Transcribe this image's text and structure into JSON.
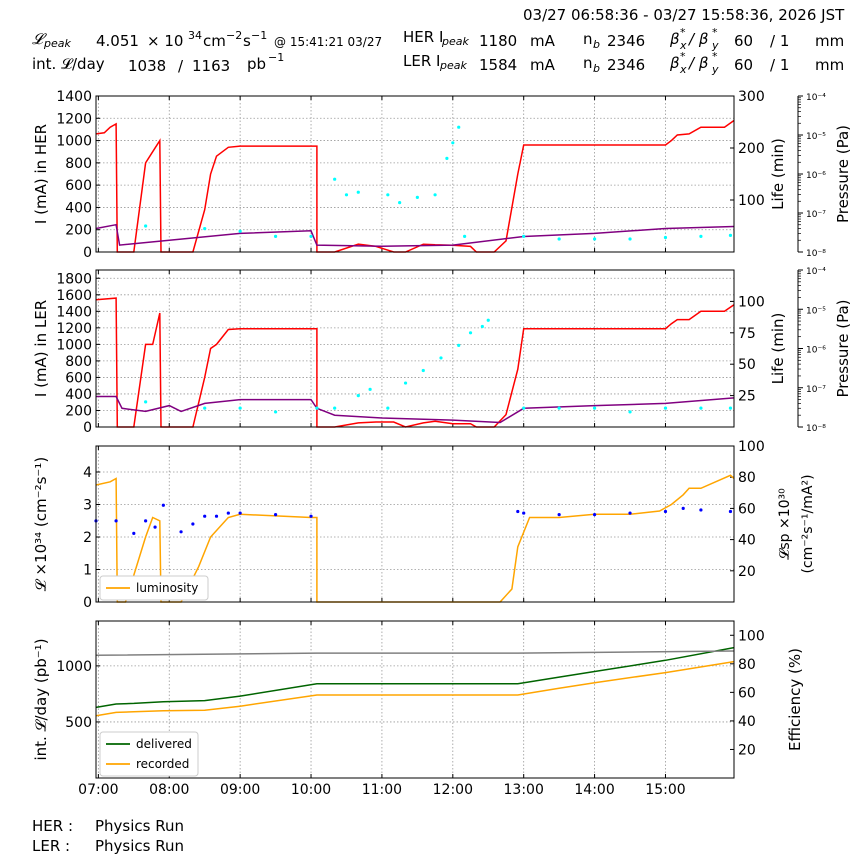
{
  "header": {
    "time_range": "03/27 06:58:36 - 03/27 15:58:36, 2026 JST",
    "lpeak_label": "𝓛",
    "lpeak_sub": "peak",
    "lpeak_value": "4.051",
    "lpeak_times": "× 10",
    "lpeak_exp": "34",
    "lpeak_unit_a": "cm",
    "lpeak_unit_b": "−2",
    "lpeak_unit_c": "s",
    "lpeak_unit_d": "−1",
    "lpeak_at": "@ 15:41:21 03/27",
    "intl_label": "int. 𝓛/day",
    "intl_value1": "1038",
    "intl_slash": "/",
    "intl_value2": "1163",
    "intl_unit": "pb",
    "intl_unit_exp": "−1",
    "her_ipeak_label": "HER I",
    "her_ipeak_sub": "peak",
    "her_ipeak_value": "1180",
    "her_unit": "mA",
    "her_nb_label": "n",
    "her_nb_sub": "b",
    "her_nb_value": "2346",
    "her_beta": "β",
    "her_beta_x": "x",
    "her_beta_sep": "/ β",
    "her_beta_y": "y",
    "her_star": "*",
    "her_beta_val1": "60",
    "her_beta_val2": "/ 1",
    "her_beta_unit": "mm",
    "ler_ipeak_label": "LER I",
    "ler_ipeak_sub": "peak",
    "ler_ipeak_value": "1584",
    "ler_unit": "mA",
    "ler_nb_label": "n",
    "ler_nb_sub": "b",
    "ler_nb_value": "2346",
    "ler_beta": "β",
    "ler_beta_x": "x",
    "ler_beta_sep": "/ β",
    "ler_beta_y": "y",
    "ler_star": "*",
    "ler_beta_val1": "60",
    "ler_beta_val2": "/ 1",
    "ler_beta_unit": "mm"
  },
  "footer": {
    "her_label": "HER :",
    "her_status": "Physics Run",
    "ler_label": "LER :",
    "ler_status": "Physics Run"
  },
  "colors": {
    "current": "#ff0000",
    "life": "#00ffff",
    "pressure": "#800080",
    "lum": "#ffa500",
    "lsp": "#0000ff",
    "delivered": "#006400",
    "recorded": "#ffa500",
    "efficiency": "#808080"
  },
  "chart_data": [
    {
      "type": "line",
      "ylabel": "I (mA) in HER",
      "ylabel_right": "Life (min)",
      "ylabel_right2": "Pressure (Pa)",
      "xlim": [
        "06:58",
        "15:58"
      ],
      "ylim": [
        0,
        1400
      ],
      "yticks": [
        0,
        200,
        400,
        600,
        800,
        1000,
        1200,
        1400
      ],
      "y2lim": [
        0,
        300
      ],
      "y2ticks": [
        100,
        200,
        300
      ],
      "y3_log_range": [
        -8,
        -4
      ],
      "y3ticks": [
        "10⁻⁸",
        "10⁻⁷",
        "10⁻⁶",
        "10⁻⁵",
        "10⁻⁴"
      ],
      "series": [
        {
          "role": "current",
          "axis": "left",
          "x": [
            "06:58",
            "07:05",
            "07:10",
            "07:15",
            "07:16",
            "07:23",
            "07:30",
            "07:40",
            "07:46",
            "07:52",
            "07:53",
            "08:00",
            "08:10",
            "08:20",
            "08:30",
            "08:35",
            "08:40",
            "08:50",
            "09:00",
            "10:00",
            "10:05",
            "10:05",
            "10:20",
            "10:40",
            "10:55",
            "11:10",
            "11:20",
            "11:35",
            "11:45",
            "12:00",
            "12:15",
            "12:20",
            "12:35",
            "12:45",
            "12:55",
            "13:00",
            "14:00",
            "15:00",
            "15:05",
            "15:10",
            "15:20",
            "15:30",
            "15:50",
            "15:58"
          ],
          "y": [
            1060,
            1070,
            1120,
            1150,
            0,
            0,
            0,
            800,
            900,
            1000,
            0,
            0,
            0,
            0,
            380,
            700,
            860,
            940,
            950,
            950,
            950,
            0,
            0,
            70,
            50,
            0,
            0,
            70,
            65,
            60,
            50,
            0,
            0,
            100,
            700,
            960,
            960,
            960,
            1000,
            1050,
            1060,
            1120,
            1120,
            1180
          ]
        },
        {
          "role": "pressure",
          "axis": "right2",
          "x": [
            "06:58",
            "07:15",
            "07:18",
            "08:00",
            "09:00",
            "10:00",
            "10:05",
            "11:00",
            "12:00",
            "13:00",
            "14:00",
            "15:00",
            "15:58"
          ],
          "y": [
            4e-08,
            5e-08,
            1.5e-08,
            2e-08,
            3e-08,
            3.5e-08,
            1.5e-08,
            1.4e-08,
            1.5e-08,
            2.5e-08,
            3e-08,
            4e-08,
            4.5e-08
          ]
        },
        {
          "role": "life",
          "axis": "right",
          "style": "dots",
          "x": [
            "07:40",
            "08:30",
            "09:00",
            "09:30",
            "10:00",
            "10:20",
            "10:30",
            "10:40",
            "11:05",
            "11:15",
            "11:30",
            "11:45",
            "11:55",
            "12:00",
            "12:05",
            "12:10",
            "13:00",
            "13:30",
            "14:00",
            "14:30",
            "15:00",
            "15:30",
            "15:55"
          ],
          "y": [
            50,
            45,
            40,
            30,
            30,
            140,
            110,
            115,
            110,
            95,
            105,
            110,
            180,
            210,
            240,
            30,
            30,
            25,
            25,
            25,
            28,
            30,
            32
          ]
        }
      ]
    },
    {
      "type": "line",
      "ylabel": "I (mA) in LER",
      "ylabel_right": "Life (min)",
      "ylabel_right2": "Pressure (Pa)",
      "xlim": [
        "06:58",
        "15:58"
      ],
      "ylim": [
        0,
        1900
      ],
      "yticks": [
        0,
        200,
        400,
        600,
        800,
        1000,
        1200,
        1400,
        1600,
        1800
      ],
      "y2lim": [
        0,
        125
      ],
      "y2ticks": [
        25,
        50,
        75,
        100
      ],
      "y3_log_range": [
        -8,
        -4
      ],
      "y3ticks": [
        "10⁻⁸",
        "10⁻⁷",
        "10⁻⁶",
        "10⁻⁵",
        "10⁻⁴"
      ],
      "series": [
        {
          "role": "current",
          "axis": "left",
          "x": [
            "06:58",
            "07:15",
            "07:16",
            "07:23",
            "07:30",
            "07:40",
            "07:46",
            "07:52",
            "07:53",
            "08:00",
            "08:10",
            "08:20",
            "08:30",
            "08:35",
            "08:40",
            "08:50",
            "09:00",
            "10:00",
            "10:05",
            "10:05",
            "10:20",
            "10:40",
            "10:55",
            "11:10",
            "11:20",
            "11:35",
            "11:45",
            "12:00",
            "12:15",
            "12:20",
            "12:35",
            "12:45",
            "12:55",
            "13:00",
            "14:00",
            "15:00",
            "15:05",
            "15:10",
            "15:20",
            "15:30",
            "15:50",
            "15:58"
          ],
          "y": [
            1540,
            1560,
            0,
            0,
            0,
            1000,
            1000,
            1380,
            0,
            0,
            0,
            0,
            600,
            950,
            1000,
            1180,
            1190,
            1190,
            1190,
            0,
            0,
            50,
            60,
            60,
            0,
            50,
            70,
            40,
            40,
            0,
            0,
            150,
            700,
            1190,
            1190,
            1190,
            1250,
            1300,
            1300,
            1400,
            1400,
            1480
          ]
        },
        {
          "role": "pressure",
          "axis": "right2",
          "x": [
            "06:58",
            "07:15",
            "07:20",
            "07:40",
            "08:00",
            "08:10",
            "08:30",
            "09:00",
            "10:00",
            "10:05",
            "10:20",
            "11:00",
            "12:00",
            "12:40",
            "13:00",
            "14:00",
            "15:00",
            "15:58"
          ],
          "y": [
            6e-08,
            6e-08,
            3e-08,
            2.5e-08,
            3.5e-08,
            2.5e-08,
            4e-08,
            5e-08,
            5e-08,
            3e-08,
            2e-08,
            1.7e-08,
            1.5e-08,
            1.3e-08,
            3e-08,
            3.5e-08,
            4e-08,
            5.5e-08
          ]
        },
        {
          "role": "life",
          "axis": "right",
          "style": "dots",
          "x": [
            "07:40",
            "08:30",
            "09:00",
            "09:30",
            "10:05",
            "10:20",
            "10:40",
            "10:50",
            "11:05",
            "11:20",
            "11:35",
            "11:50",
            "12:05",
            "12:15",
            "12:25",
            "12:30",
            "13:00",
            "13:30",
            "14:00",
            "14:30",
            "15:00",
            "15:30",
            "15:55"
          ],
          "y": [
            20,
            15,
            15,
            12,
            15,
            15,
            25,
            30,
            15,
            35,
            45,
            55,
            65,
            75,
            80,
            85,
            15,
            15,
            15,
            12,
            15,
            15,
            15
          ]
        }
      ]
    },
    {
      "type": "line",
      "ylabel": "𝓛 ×10³⁴ (cm⁻²s⁻¹)",
      "ylabel_right_line1": "𝓛sp ×10³⁰",
      "ylabel_right_line2": "(cm⁻²s⁻¹/mA²)",
      "xlim": [
        "06:58",
        "15:58"
      ],
      "ylim": [
        0,
        4.8
      ],
      "yticks": [
        0,
        1,
        2,
        3,
        4
      ],
      "y2lim": [
        0,
        100
      ],
      "y2ticks": [
        20,
        40,
        60,
        80,
        100
      ],
      "legend": [
        "luminosity"
      ],
      "legend_position": "lower-left",
      "series": [
        {
          "name": "luminosity",
          "role": "lum",
          "axis": "left",
          "x": [
            "06:58",
            "07:10",
            "07:15",
            "07:16",
            "07:23",
            "07:40",
            "07:46",
            "07:52",
            "07:53",
            "08:10",
            "08:25",
            "08:35",
            "08:45",
            "08:50",
            "09:00",
            "10:00",
            "10:05",
            "10:05",
            "12:40",
            "12:50",
            "12:55",
            "13:05",
            "13:30",
            "14:00",
            "14:30",
            "14:55",
            "15:05",
            "15:15",
            "15:20",
            "15:30",
            "15:55",
            "15:58"
          ],
          "y": [
            3.6,
            3.7,
            3.8,
            0,
            0,
            2.0,
            2.6,
            2.5,
            0,
            0,
            1.1,
            2.0,
            2.4,
            2.6,
            2.7,
            2.6,
            2.6,
            0,
            0,
            0.4,
            1.7,
            2.6,
            2.6,
            2.7,
            2.7,
            2.8,
            3.0,
            3.3,
            3.5,
            3.5,
            3.9,
            3.8
          ]
        },
        {
          "name": "specific luminosity",
          "role": "lsp",
          "axis": "right",
          "style": "dots",
          "x": [
            "06:58",
            "07:15",
            "07:30",
            "07:40",
            "07:48",
            "07:55",
            "08:10",
            "08:20",
            "08:30",
            "08:40",
            "08:50",
            "09:00",
            "09:30",
            "10:00",
            "12:55",
            "13:00",
            "13:30",
            "14:00",
            "14:30",
            "15:00",
            "15:15",
            "15:30",
            "15:55"
          ],
          "y": [
            52,
            52,
            44,
            52,
            48,
            62,
            45,
            50,
            55,
            55,
            57,
            57,
            56,
            55,
            58,
            57,
            56,
            56,
            57,
            58,
            60,
            59,
            58
          ]
        }
      ]
    },
    {
      "type": "line",
      "ylabel": "int. 𝓛/day (pb⁻¹)",
      "ylabel_right": "Efficiency (%)",
      "xlim": [
        "06:58",
        "15:58"
      ],
      "ylim": [
        0,
        1400
      ],
      "yticks": [
        500,
        1000
      ],
      "y2lim": [
        0,
        110
      ],
      "y2ticks": [
        20,
        40,
        60,
        80,
        100
      ],
      "xticks": [
        "07:00",
        "08:00",
        "09:00",
        "10:00",
        "11:00",
        "12:00",
        "13:00",
        "14:00",
        "15:00"
      ],
      "legend": [
        "delivered",
        "recorded"
      ],
      "legend_position": "lower-left",
      "series": [
        {
          "name": "delivered",
          "role": "delivered",
          "axis": "left",
          "x": [
            "06:58",
            "07:15",
            "07:30",
            "07:55",
            "08:30",
            "09:00",
            "10:05",
            "12:55",
            "13:30",
            "14:00",
            "15:00",
            "15:58"
          ],
          "y": [
            630,
            660,
            665,
            680,
            690,
            730,
            840,
            840,
            900,
            950,
            1050,
            1163
          ]
        },
        {
          "name": "recorded",
          "role": "recorded",
          "axis": "left",
          "x": [
            "06:58",
            "07:15",
            "07:30",
            "07:55",
            "08:30",
            "09:00",
            "10:05",
            "12:55",
            "13:30",
            "14:00",
            "15:00",
            "15:58"
          ],
          "y": [
            555,
            585,
            590,
            600,
            605,
            640,
            740,
            740,
            800,
            850,
            940,
            1038
          ]
        },
        {
          "name": "efficiency",
          "role": "efficiency",
          "axis": "right",
          "x": [
            "06:58",
            "10:05",
            "12:55",
            "15:58"
          ],
          "y": [
            86,
            87.5,
            87.5,
            89
          ]
        }
      ]
    }
  ]
}
